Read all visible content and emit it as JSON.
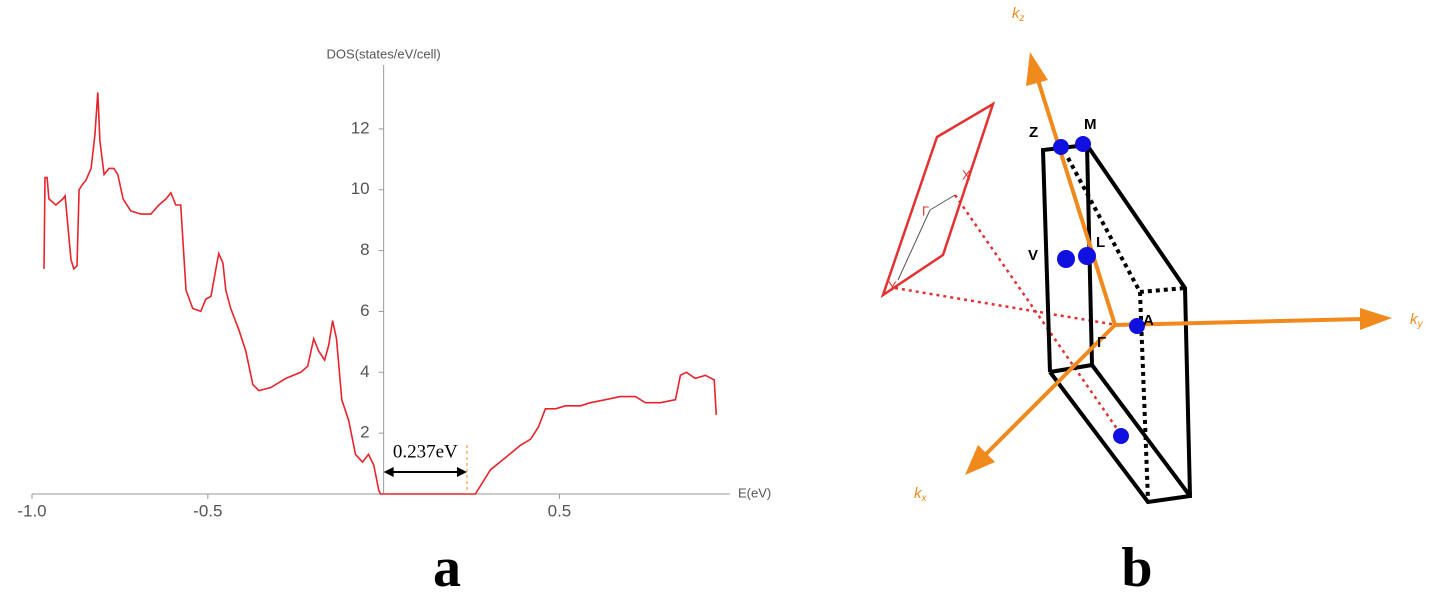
{
  "chart_data": {
    "type": "line",
    "y_label": "DOS(states/eV/cell)",
    "x_label": "E(eV)",
    "color": "#e8232b",
    "x": [
      -0.966,
      -0.963,
      -0.957,
      -0.952,
      -0.932,
      -0.912,
      -0.906,
      -0.901,
      -0.889,
      -0.881,
      -0.872,
      -0.866,
      -0.855,
      -0.847,
      -0.832,
      -0.821,
      -0.813,
      -0.807,
      -0.795,
      -0.781,
      -0.767,
      -0.756,
      -0.741,
      -0.719,
      -0.69,
      -0.662,
      -0.639,
      -0.619,
      -0.605,
      -0.591,
      -0.577,
      -0.562,
      -0.543,
      -0.52,
      -0.506,
      -0.491,
      -0.477,
      -0.469,
      -0.457,
      -0.449,
      -0.435,
      -0.412,
      -0.392,
      -0.372,
      -0.355,
      -0.321,
      -0.278,
      -0.236,
      -0.216,
      -0.199,
      -0.185,
      -0.168,
      -0.156,
      -0.145,
      -0.134,
      -0.119,
      -0.099,
      -0.08,
      -0.06,
      -0.043,
      -0.028,
      -0.014,
      -0.009,
      0.261,
      0.304,
      0.347,
      0.389,
      0.418,
      0.44,
      0.46,
      0.489,
      0.517,
      0.56,
      0.588,
      0.631,
      0.673,
      0.716,
      0.744,
      0.787,
      0.83,
      0.844,
      0.861,
      0.886,
      0.915,
      0.94,
      0.946
    ],
    "values": [
      7.4,
      10.4,
      10.4,
      9.7,
      9.5,
      9.7,
      9.8,
      9.2,
      7.7,
      7.4,
      7.5,
      10.0,
      10.2,
      10.3,
      10.7,
      11.8,
      13.2,
      11.6,
      10.5,
      10.7,
      10.7,
      10.5,
      9.7,
      9.3,
      9.2,
      9.2,
      9.5,
      9.7,
      9.9,
      9.5,
      9.5,
      6.7,
      6.1,
      6.0,
      6.4,
      6.5,
      7.4,
      7.9,
      7.6,
      6.7,
      6.1,
      5.4,
      4.7,
      3.6,
      3.4,
      3.5,
      3.8,
      4.0,
      4.2,
      5.1,
      4.7,
      4.4,
      4.9,
      5.7,
      5.1,
      3.1,
      2.4,
      1.3,
      1.05,
      1.3,
      0.95,
      0.13,
      0,
      0,
      0.8,
      1.2,
      1.6,
      1.8,
      2.2,
      2.8,
      2.8,
      2.9,
      2.9,
      3.0,
      3.1,
      3.2,
      3.2,
      3.0,
      3.0,
      3.1,
      3.9,
      4.0,
      3.8,
      3.9,
      3.75,
      2.6
    ],
    "xlim": [
      -1.0,
      0.985
    ],
    "ylim": [
      0,
      14.1
    ],
    "xticks": [
      {
        "value": -1.0,
        "label": "-1.0"
      },
      {
        "value": -0.5,
        "label": "-0.5"
      },
      0.5
    ],
    "yticks": [
      2,
      4,
      6,
      8,
      10,
      12
    ],
    "gap": {
      "value": 0.237,
      "label": "0.237eV"
    }
  },
  "diagram": {
    "axes": [
      {
        "k": "k",
        "sub": "z"
      },
      {
        "k": "k",
        "sub": "y"
      },
      {
        "k": "k",
        "sub": "x"
      }
    ],
    "points": [
      "Z",
      "M",
      "L",
      "V",
      "A",
      "Γ"
    ],
    "plane_points": [
      "X",
      "Γ",
      "Y"
    ]
  },
  "panel_labels": [
    "a",
    "b"
  ]
}
